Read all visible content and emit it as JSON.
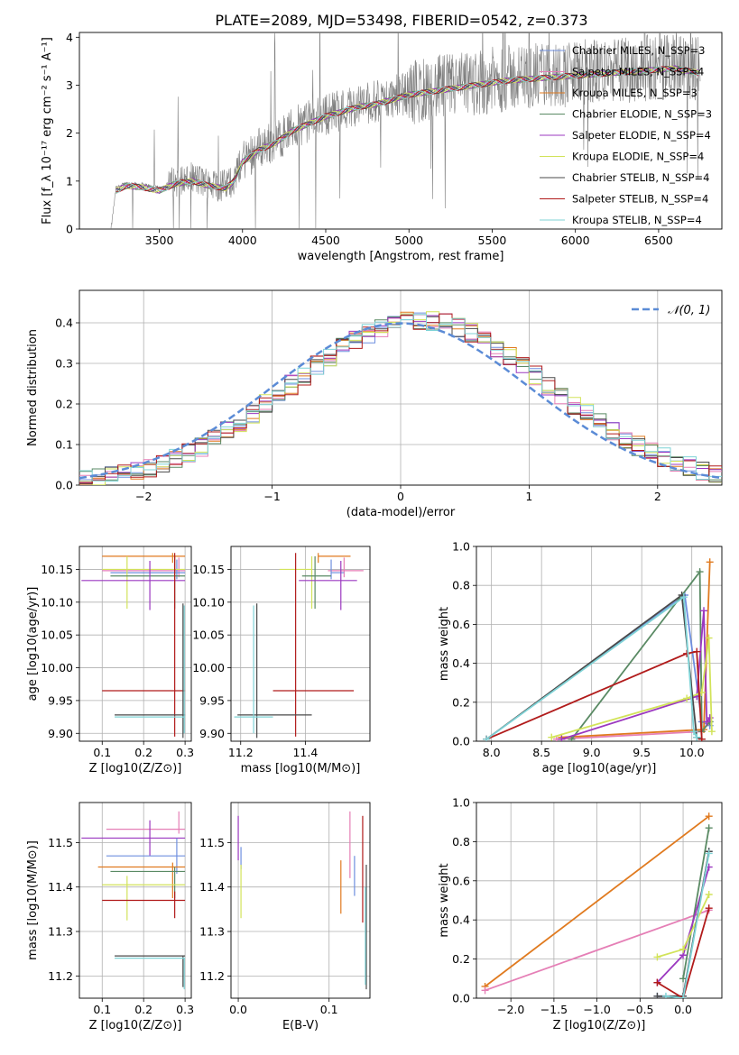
{
  "figure_title": "PLATE=2089, MJD=53498, FIBERID=0542, z=0.373",
  "colors": {
    "cM": "#6f8fdf",
    "sM": "#e57fb6",
    "kM": "#e07a1f",
    "cE": "#5a8a64",
    "sE": "#9b38c0",
    "kE": "#d2e35a",
    "cS": "#4a4a4a",
    "sS": "#b11b1b",
    "kS": "#7fd3d6",
    "data": "#808080",
    "normal": "#5b8bd6"
  },
  "chart_data": [
    {
      "id": "spectrum",
      "type": "line",
      "xlabel": "wavelength [Angstrom, rest frame]",
      "ylabel": "Flux [f_λ 10⁻¹⁷ erg cm⁻² s⁻¹ A⁻¹]",
      "xlim": [
        3020,
        6880
      ],
      "ylim": [
        0,
        4.1
      ],
      "xticks": [
        3500,
        4000,
        4500,
        5000,
        5500,
        6000,
        6500
      ],
      "yticks": [
        0,
        1,
        2,
        3,
        4
      ],
      "data_curve": {
        "name": "",
        "x": [
          3210,
          3240,
          3300,
          3400,
          3500,
          3600,
          3700,
          3800,
          3900,
          3950,
          4000,
          4100,
          4200,
          4300,
          4400,
          4500,
          4600,
          4700,
          4800,
          4900,
          5000,
          5200,
          5400,
          5600,
          5800,
          6000,
          6200,
          6400,
          6600,
          6750
        ],
        "y": [
          0,
          0.85,
          0.95,
          0.92,
          0.85,
          1.0,
          1.05,
          0.95,
          0.9,
          1.05,
          1.45,
          1.7,
          1.85,
          2.1,
          2.25,
          2.4,
          2.5,
          2.6,
          2.65,
          2.75,
          2.85,
          2.95,
          3.05,
          3.15,
          3.2,
          3.25,
          3.3,
          3.35,
          3.4,
          3.3
        ]
      },
      "legend": [
        {
          "key": "cM",
          "label": "Chabrier MILES, N_SSP=3"
        },
        {
          "key": "sM",
          "label": "Salpeter MILES, N_SSP=4"
        },
        {
          "key": "kM",
          "label": "Kroupa MILES, N_SSP=3"
        },
        {
          "key": "cE",
          "label": "Chabrier ELODIE, N_SSP=3"
        },
        {
          "key": "sE",
          "label": "Salpeter ELODIE, N_SSP=4"
        },
        {
          "key": "kE",
          "label": "Kroupa ELODIE, N_SSP=4"
        },
        {
          "key": "cS",
          "label": "Chabrier STELIB, N_SSP=4"
        },
        {
          "key": "sS",
          "label": "Salpeter STELIB, N_SSP=4"
        },
        {
          "key": "kS",
          "label": "Kroupa STELIB, N_SSP=4"
        }
      ]
    },
    {
      "id": "residuals",
      "type": "histogram",
      "xlabel": "(data-model)/error",
      "ylabel": "Normed distribution",
      "xlim": [
        -2.5,
        2.5
      ],
      "ylim": [
        0,
        0.48
      ],
      "xticks": [
        -2,
        -1,
        0,
        1,
        2
      ],
      "yticks": [
        0.0,
        0.1,
        0.2,
        0.3,
        0.4
      ],
      "bin_width": 0.1,
      "series_keys": [
        "cM",
        "sM",
        "kM",
        "cE",
        "sE",
        "kE",
        "cS",
        "sS",
        "kS"
      ],
      "normal_label": "𝒩(0, 1)"
    },
    {
      "id": "age_vs_Z",
      "type": "errorbar",
      "xlabel": "Z [log10(Z/Z⊙)]",
      "ylabel": "age  [log10(age/yr)]",
      "xlim": [
        0.045,
        0.315
      ],
      "ylim": [
        9.888,
        10.185
      ],
      "xticks": [
        0.1,
        0.2,
        0.3
      ],
      "yticks": [
        9.9,
        9.95,
        10.0,
        10.05,
        10.1,
        10.15
      ],
      "points": [
        {
          "key": "kM",
          "x": 0.27,
          "xerr": [
            0.17,
            0.03
          ],
          "y": 10.17,
          "yerr": [
            0.01,
            0.005
          ]
        },
        {
          "key": "sM",
          "x": 0.285,
          "xerr": [
            0.185,
            0.015
          ],
          "y": 10.148,
          "yerr": [
            0.01,
            0.02
          ]
        },
        {
          "key": "cM",
          "x": 0.28,
          "xerr": [
            0.16,
            0.02
          ],
          "y": 10.145,
          "yerr": [
            0.01,
            0.02
          ]
        },
        {
          "key": "kE",
          "x": 0.16,
          "xerr": [
            0.06,
            0.14
          ],
          "y": 10.15,
          "yerr": [
            0.06,
            0.02
          ]
        },
        {
          "key": "cE",
          "x": 0.275,
          "xerr": [
            0.155,
            0.025
          ],
          "y": 10.14,
          "yerr": [
            0.05,
            0.03
          ]
        },
        {
          "key": "sE",
          "x": 0.215,
          "xerr": [
            0.165,
            0.085
          ],
          "y": 10.133,
          "yerr": [
            0.045,
            0.03
          ]
        },
        {
          "key": "sS",
          "x": 0.275,
          "xerr": [
            0.175,
            0.025
          ],
          "y": 9.965,
          "yerr": [
            0.07,
            0.21
          ]
        },
        {
          "key": "cS",
          "x": 0.295,
          "xerr": [
            0.165,
            0.005
          ],
          "y": 9.928,
          "yerr": [
            0.035,
            0.17
          ]
        },
        {
          "key": "kS",
          "x": 0.298,
          "xerr": [
            0.168,
            0.002
          ],
          "y": 9.925,
          "yerr": [
            0.025,
            0.17
          ]
        }
      ]
    },
    {
      "id": "age_vs_mass",
      "type": "errorbar",
      "xlabel": "mass [log10(M/M⊙)]",
      "ylabel": "",
      "xlim": [
        11.17,
        11.6
      ],
      "ylim": [
        9.888,
        10.185
      ],
      "xticks": [
        11.2,
        11.4
      ],
      "yticks": [
        9.9,
        9.95,
        10.0,
        10.05,
        10.1,
        10.15
      ],
      "points": [
        {
          "key": "kM",
          "x": 11.44,
          "xerr": [
            0.0,
            0.1
          ],
          "y": 10.17,
          "yerr": [
            0.01,
            0.005
          ]
        },
        {
          "key": "sM",
          "x": 11.52,
          "xerr": [
            0.05,
            0.06
          ],
          "y": 10.148,
          "yerr": [
            0.01,
            0.02
          ]
        },
        {
          "key": "cM",
          "x": 11.48,
          "xerr": [
            0.0,
            0.04
          ],
          "y": 10.145,
          "yerr": [
            0.01,
            0.02
          ]
        },
        {
          "key": "kE",
          "x": 11.42,
          "xerr": [
            0.1,
            0.0
          ],
          "y": 10.15,
          "yerr": [
            0.06,
            0.02
          ]
        },
        {
          "key": "cE",
          "x": 11.43,
          "xerr": [
            0.04,
            0.05
          ],
          "y": 10.14,
          "yerr": [
            0.05,
            0.03
          ]
        },
        {
          "key": "sE",
          "x": 11.51,
          "xerr": [
            0.13,
            0.05
          ],
          "y": 10.133,
          "yerr": [
            0.045,
            0.03
          ]
        },
        {
          "key": "sS",
          "x": 11.37,
          "xerr": [
            0.07,
            0.18
          ],
          "y": 9.965,
          "yerr": [
            0.07,
            0.21
          ]
        },
        {
          "key": "cS",
          "x": 11.25,
          "xerr": [
            0.06,
            0.17
          ],
          "y": 9.928,
          "yerr": [
            0.035,
            0.17
          ]
        },
        {
          "key": "kS",
          "x": 11.24,
          "xerr": [
            0.06,
            0.06
          ],
          "y": 9.925,
          "yerr": [
            0.025,
            0.17
          ]
        }
      ]
    },
    {
      "id": "weight_vs_age",
      "type": "line",
      "xlabel": "age  [log10(age/yr)]",
      "ylabel": "mass weight",
      "xlim": [
        7.85,
        10.3
      ],
      "ylim": [
        0,
        1.0
      ],
      "xticks": [
        8.0,
        8.5,
        9.0,
        9.5,
        10.0
      ],
      "yticks": [
        0.0,
        0.2,
        0.4,
        0.6,
        0.8,
        1.0
      ],
      "series": [
        {
          "key": "cM",
          "x": [
            7.95,
            9.93,
            10.1,
            10.18
          ],
          "y": [
            0.01,
            0.75,
            0.1,
            0.08
          ]
        },
        {
          "key": "sM",
          "x": [
            8.65,
            10.1,
            10.17
          ],
          "y": [
            0.01,
            0.05,
            0.1
          ]
        },
        {
          "key": "kM",
          "x": [
            8.7,
            10.12,
            10.18
          ],
          "y": [
            0.02,
            0.06,
            0.92
          ]
        },
        {
          "key": "cE",
          "x": [
            8.8,
            10.08,
            10.1,
            10.18
          ],
          "y": [
            0.01,
            0.87,
            0.05,
            0.1
          ]
        },
        {
          "key": "sE",
          "x": [
            8.7,
            10.05,
            10.12,
            10.15,
            10.18
          ],
          "y": [
            0.01,
            0.23,
            0.67,
            0.1,
            0.12
          ]
        },
        {
          "key": "kE",
          "x": [
            8.6,
            9.95,
            10.1,
            10.17,
            10.2
          ],
          "y": [
            0.02,
            0.22,
            0.25,
            0.53,
            0.05
          ]
        },
        {
          "key": "cS",
          "x": [
            7.95,
            9.9,
            10.05,
            10.1
          ],
          "y": [
            0.01,
            0.75,
            0.02,
            0.01
          ]
        },
        {
          "key": "sS",
          "x": [
            7.95,
            9.95,
            10.05,
            10.1
          ],
          "y": [
            0.01,
            0.45,
            0.46,
            0.01
          ]
        },
        {
          "key": "kS",
          "x": [
            7.95,
            9.92,
            10.02,
            10.05
          ],
          "y": [
            0.01,
            0.74,
            0.05,
            0.02
          ]
        }
      ]
    },
    {
      "id": "mass_vs_Z",
      "type": "errorbar",
      "xlabel": "Z [log10(Z/Z⊙)]",
      "ylabel": "mass [log10(M/M⊙)]",
      "xlim": [
        0.045,
        0.315
      ],
      "ylim": [
        11.15,
        11.59
      ],
      "xticks": [
        0.1,
        0.2,
        0.3
      ],
      "yticks": [
        11.2,
        11.3,
        11.4,
        11.5
      ],
      "points": [
        {
          "key": "sM",
          "x": 0.285,
          "xerr": [
            0.175,
            0.015
          ],
          "y": 11.53,
          "yerr": [
            0.01,
            0.04
          ]
        },
        {
          "key": "sE",
          "x": 0.215,
          "xerr": [
            0.165,
            0.085
          ],
          "y": 11.51,
          "yerr": [
            0.04,
            0.04
          ]
        },
        {
          "key": "cM",
          "x": 0.28,
          "xerr": [
            0.17,
            0.02
          ],
          "y": 11.47,
          "yerr": [
            0.04,
            0.04
          ]
        },
        {
          "key": "kM",
          "x": 0.27,
          "xerr": [
            0.18,
            0.03
          ],
          "y": 11.445,
          "yerr": [
            0.07,
            0.01
          ]
        },
        {
          "key": "cE",
          "x": 0.275,
          "xerr": [
            0.155,
            0.025
          ],
          "y": 11.435,
          "yerr": [
            0.06,
            0.01
          ]
        },
        {
          "key": "kE",
          "x": 0.16,
          "xerr": [
            0.06,
            0.14
          ],
          "y": 11.405,
          "yerr": [
            0.08,
            0.02
          ]
        },
        {
          "key": "sS",
          "x": 0.275,
          "xerr": [
            0.175,
            0.025
          ],
          "y": 11.37,
          "yerr": [
            0.04,
            0.02
          ]
        },
        {
          "key": "cS",
          "x": 0.295,
          "xerr": [
            0.165,
            0.005
          ],
          "y": 11.245,
          "yerr": [
            0.07,
            0.0
          ]
        },
        {
          "key": "kS",
          "x": 0.298,
          "xerr": [
            0.168,
            0.002
          ],
          "y": 11.24,
          "yerr": [
            0.07,
            0.0
          ]
        }
      ]
    },
    {
      "id": "mass_vs_ebv",
      "type": "errorbar",
      "xlabel": "E(B-V)",
      "ylabel": "",
      "xlim": [
        -0.008,
        0.145
      ],
      "ylim": [
        11.15,
        11.59
      ],
      "xticks": [
        0.0,
        0.1
      ],
      "yticks": [
        11.2,
        11.3,
        11.4,
        11.5
      ],
      "points": [
        {
          "key": "sE",
          "x": 0.0,
          "xerr": [
            0,
            0
          ],
          "y": 11.51,
          "yerr": [
            0.05,
            0.05
          ]
        },
        {
          "key": "cM",
          "x": 0.003,
          "xerr": [
            0,
            0
          ],
          "y": 11.47,
          "yerr": [
            0.03,
            0.02
          ]
        },
        {
          "key": "kE",
          "x": 0.003,
          "xerr": [
            0,
            0
          ],
          "y": 11.41,
          "yerr": [
            0.08,
            0.04
          ]
        },
        {
          "key": "kM",
          "x": 0.113,
          "xerr": [
            0,
            0
          ],
          "y": 11.41,
          "yerr": [
            0.07,
            0.05
          ]
        },
        {
          "key": "sM",
          "x": 0.123,
          "xerr": [
            0,
            0
          ],
          "y": 11.5,
          "yerr": [
            0.08,
            0.07
          ]
        },
        {
          "key": "cM",
          "x": 0.128,
          "xerr": [
            0,
            0
          ],
          "y": 11.42,
          "yerr": [
            0.04,
            0.05
          ]
        },
        {
          "key": "sS",
          "x": 0.137,
          "xerr": [
            0,
            0
          ],
          "y": 11.45,
          "yerr": [
            0.13,
            0.11
          ]
        },
        {
          "key": "cS",
          "x": 0.141,
          "xerr": [
            0,
            0
          ],
          "y": 11.31,
          "yerr": [
            0.14,
            0.14
          ]
        },
        {
          "key": "kS",
          "x": 0.14,
          "xerr": [
            0,
            0
          ],
          "y": 11.3,
          "yerr": [
            0.12,
            0.1
          ]
        }
      ]
    },
    {
      "id": "weight_vs_Z",
      "type": "line",
      "xlabel": "Z [log10(Z/Z⊙)]",
      "ylabel": "mass weight",
      "xlim": [
        -2.4,
        0.45
      ],
      "ylim": [
        0,
        1.0
      ],
      "xticks": [
        -2.0,
        -1.5,
        -1.0,
        -0.5,
        0.0
      ],
      "yticks": [
        0.0,
        0.2,
        0.4,
        0.6,
        0.8,
        1.0
      ],
      "series": [
        {
          "key": "kM",
          "x": [
            -2.3,
            0.3
          ],
          "y": [
            0.06,
            0.93
          ]
        },
        {
          "key": "sM",
          "x": [
            -2.3,
            0.3
          ],
          "y": [
            0.04,
            0.45
          ]
        },
        {
          "key": "cM",
          "x": [
            -0.3,
            0.0,
            0.3
          ],
          "y": [
            0.01,
            0.01,
            0.75
          ]
        },
        {
          "key": "cE",
          "x": [
            0.0,
            0.3
          ],
          "y": [
            0.1,
            0.87
          ]
        },
        {
          "key": "sE",
          "x": [
            -0.3,
            0.0,
            0.3
          ],
          "y": [
            0.08,
            0.22,
            0.67
          ]
        },
        {
          "key": "kE",
          "x": [
            -0.3,
            0.0,
            0.3
          ],
          "y": [
            0.21,
            0.25,
            0.53
          ]
        },
        {
          "key": "cS",
          "x": [
            -0.3,
            0.0,
            0.3
          ],
          "y": [
            0.01,
            0.01,
            0.75
          ]
        },
        {
          "key": "sS",
          "x": [
            -0.3,
            0.0,
            0.3
          ],
          "y": [
            0.08,
            0.0,
            0.46
          ]
        },
        {
          "key": "kS",
          "x": [
            -0.2,
            0.0,
            0.3
          ],
          "y": [
            0.01,
            0.0,
            0.74
          ]
        }
      ]
    }
  ]
}
